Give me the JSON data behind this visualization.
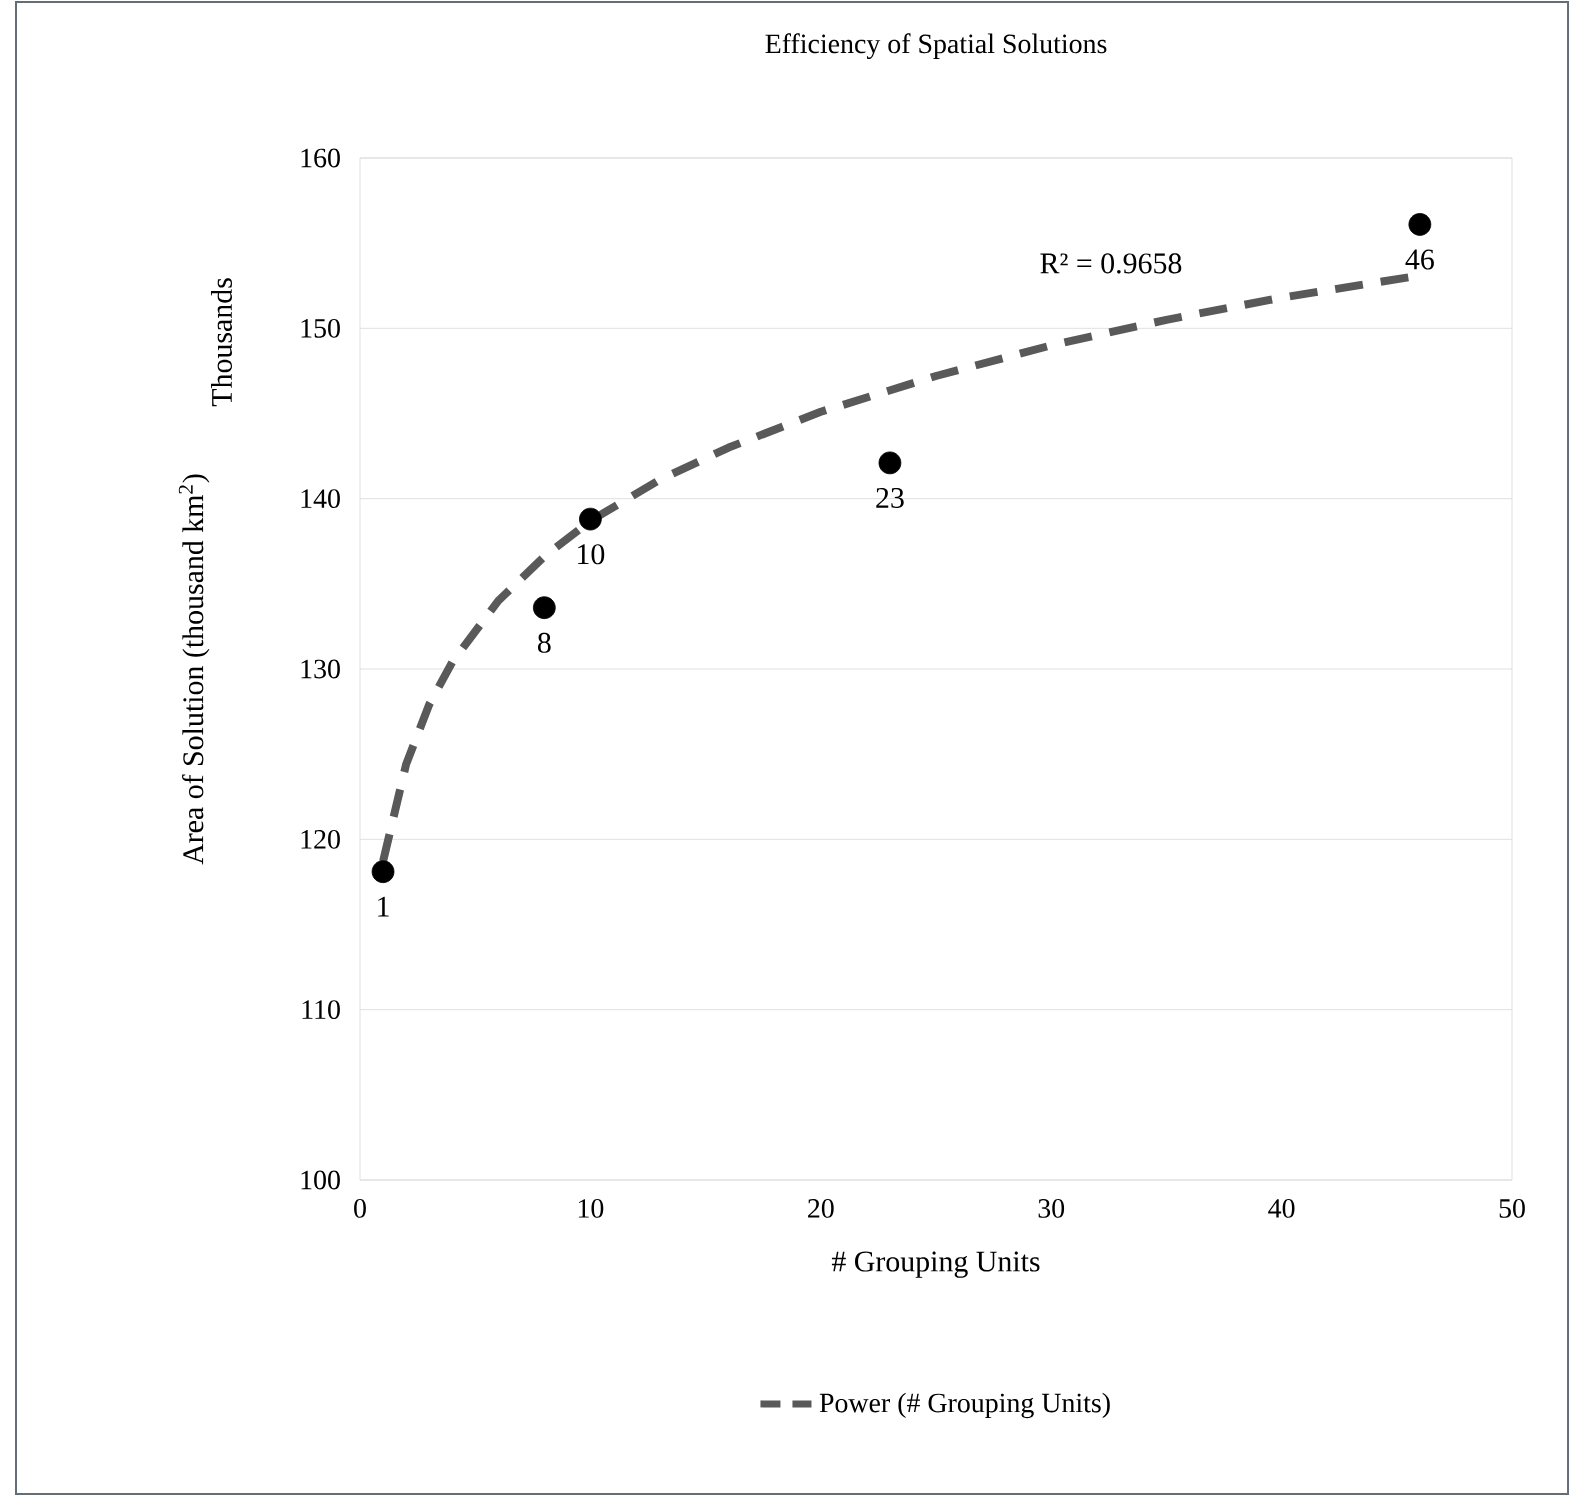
{
  "chart_data": {
    "type": "scatter",
    "title": "Efficiency of Spatial Solutions",
    "xlabel": "# Grouping Units",
    "ylabel": "Area of Solution (thousand km$^{2}$)",
    "annotations": [
      "R² = 0.9658",
      "Thousands",
      {
        "text": "1",
        "x": 1,
        "y": 118.1
      },
      {
        "text": "8",
        "x": 8,
        "y": 133.6
      },
      {
        "text": "10",
        "x": 10,
        "y": 138.8
      },
      {
        "text": "23",
        "x": 23,
        "y": 142.1
      },
      {
        "text": "46",
        "x": 46,
        "y": 156.1
      }
    ],
    "series": [
      {
        "color": "#000000",
        "marker": "circle",
        "x": [
          1,
          8,
          10,
          23,
          46
        ],
        "values": [
          118.1,
          133.6,
          138.8,
          142.1,
          156.1
        ]
      },
      {
        "type": "line",
        "name": "Power (# Grouping Units)",
        "color": "#595959",
        "line_style": "dashed",
        "marker": "none",
        "x": [
          1,
          2,
          3,
          4,
          6,
          8,
          10,
          13,
          16,
          20,
          25,
          30,
          35,
          40,
          46
        ],
        "values": [
          118.7,
          124.4,
          127.9,
          130.4,
          134.0,
          136.6,
          138.7,
          141.1,
          143.0,
          145.1,
          147.2,
          149.0,
          150.5,
          151.8,
          153.1
        ]
      }
    ],
    "xlim": [
      0,
      50
    ],
    "xticks": [
      0,
      10,
      20,
      30,
      40,
      50
    ],
    "ylim": [
      100,
      160
    ],
    "yticks": [
      100,
      110,
      120,
      130,
      140,
      150,
      160
    ],
    "grid": "y",
    "legend": "bottom"
  }
}
